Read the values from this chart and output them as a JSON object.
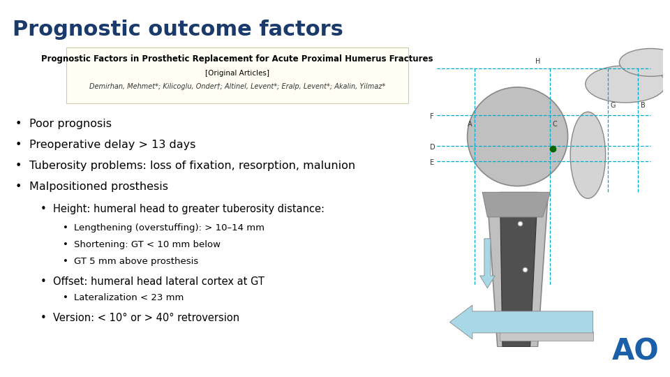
{
  "title": "Prognostic outcome factors",
  "title_color": "#1a3a6b",
  "title_fontsize": 22,
  "bg_color": "#ffffff",
  "journal_box_color": "#fffff5",
  "journal_box_border": "#ccccaa",
  "journal_title": "Prognostic Factors in Prosthetic Replacement for Acute Proximal Humerus Fractures",
  "journal_subtitle": "[Original Articles]",
  "journal_authors": "Demirhan, Mehmet*; Kilicoglu, Onder†; Altinel, Levent*; Eralp, Levent*; Akalin, Yilmaz*",
  "bullet_fontsize": 11.5,
  "bullets_l1": [
    "Poor prognosis",
    "Preoperative delay > 13 days",
    "Tuberosity problems: loss of fixation, resorption, malunion",
    "Malpositioned prosthesis"
  ],
  "sub_bullet_height": "Height: humeral head to greater tuberosity distance:",
  "sub_sub_bullets": [
    "Lengthening (overstuffing): > 10–14 mm",
    "Shortening: GT < 10 mm below",
    "GT 5 mm above prosthesis"
  ],
  "sub_bullet_offset": "Offset: humeral head lateral cortex at GT",
  "sub_sub_offset": "Lateralization < 23 mm",
  "sub_bullet_version": "Version: < 10° or > 40° retroversion",
  "ao_color": "#1a5fa8",
  "ao_fontsize": 30,
  "dash_color": "#00aacc",
  "gray_fill": "#c0c0c0",
  "gray_edge": "#888888",
  "dark_fill": "#505050",
  "arrow_fill": "#a8d8e8"
}
